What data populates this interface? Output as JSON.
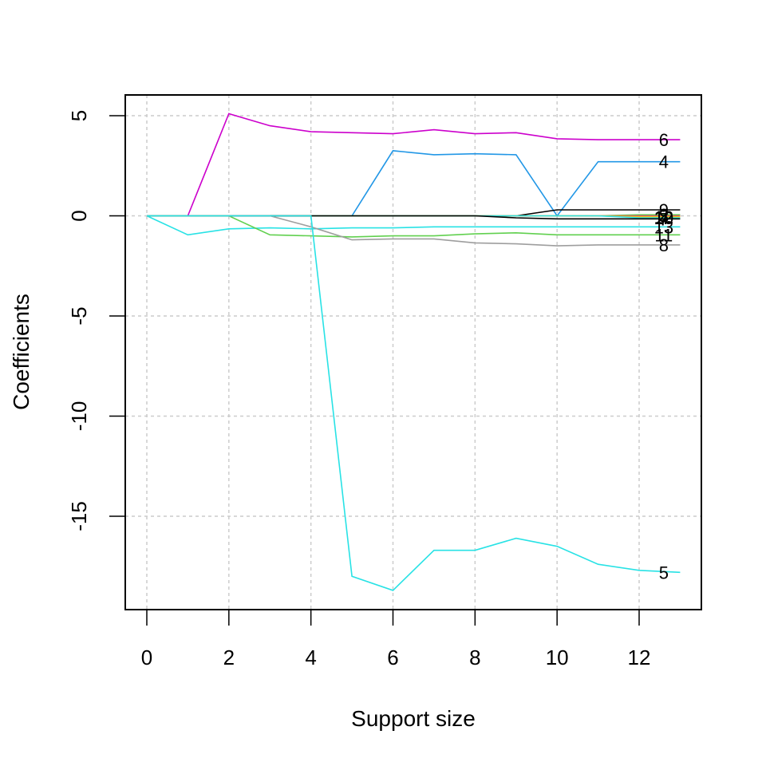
{
  "chart_data": {
    "type": "line",
    "xlabel": "Support size",
    "ylabel": "Coefficients",
    "xlim": [
      0,
      13
    ],
    "ylim": [
      -19.7,
      6
    ],
    "xticks": [
      0,
      2,
      4,
      6,
      8,
      10,
      12
    ],
    "yticks": [
      5,
      0,
      -5,
      -10,
      -15
    ],
    "grid": true,
    "x": [
      0,
      1,
      2,
      3,
      4,
      5,
      6,
      7,
      8,
      9,
      10,
      11,
      12,
      13
    ],
    "series": [
      {
        "name": "6",
        "color": "#cc00cc",
        "values": [
          0,
          0,
          5.1,
          4.5,
          4.2,
          4.15,
          4.1,
          4.3,
          4.1,
          4.15,
          3.85,
          3.8,
          3.8,
          3.8
        ]
      },
      {
        "name": "4",
        "color": "#2297e6",
        "values": [
          0,
          0,
          0,
          0,
          0,
          0,
          3.25,
          3.05,
          3.1,
          3.05,
          0,
          2.7,
          2.7,
          2.7
        ]
      },
      {
        "name": "9",
        "color": "#000000",
        "values": [
          0,
          0,
          0,
          0,
          0,
          0,
          0,
          0,
          0,
          0,
          0.3,
          0.3,
          0.3,
          0.3
        ]
      },
      {
        "name": "2",
        "color": "#61d04f",
        "values": [
          0,
          0,
          0,
          0,
          0,
          0,
          0,
          0,
          0,
          0,
          0,
          0,
          0.05,
          0.05
        ]
      },
      {
        "name": "3",
        "color": "#df536b",
        "values": [
          0,
          0,
          0,
          0,
          0,
          0,
          0,
          0,
          0,
          0,
          0,
          0,
          0,
          0
        ]
      },
      {
        "name": "12",
        "color": "#f5c710",
        "values": [
          0,
          0,
          0,
          0,
          0,
          0,
          0,
          0,
          0,
          0,
          0,
          0,
          -0.05,
          -0.05
        ]
      },
      {
        "name": "10",
        "color": "#28e2e5",
        "values": [
          0,
          0,
          0,
          0,
          0,
          0,
          0,
          0,
          0,
          0,
          0,
          0,
          -0.1,
          -0.1
        ]
      },
      {
        "name": "7",
        "color": "#000000",
        "values": [
          0,
          0,
          0,
          0,
          0,
          0,
          0,
          0,
          0,
          -0.1,
          -0.15,
          -0.15,
          -0.15,
          -0.15
        ]
      },
      {
        "name": "13",
        "color": "#28e2e5",
        "values": [
          0,
          -0.95,
          -0.65,
          -0.6,
          -0.65,
          -0.6,
          -0.6,
          -0.55,
          -0.55,
          -0.55,
          -0.55,
          -0.55,
          -0.55,
          -0.55
        ]
      },
      {
        "name": "11",
        "color": "#61d04f",
        "values": [
          0,
          0,
          0,
          -0.95,
          -1.0,
          -1.05,
          -1.0,
          -1.0,
          -0.9,
          -0.85,
          -0.95,
          -0.95,
          -0.95,
          -0.95
        ]
      },
      {
        "name": "8",
        "color": "#9e9e9e",
        "values": [
          0,
          0,
          0,
          0,
          -0.55,
          -1.2,
          -1.15,
          -1.15,
          -1.35,
          -1.4,
          -1.5,
          -1.45,
          -1.45,
          -1.45
        ]
      },
      {
        "name": "5",
        "color": "#28e2e5",
        "values": [
          0,
          0,
          0,
          0,
          0,
          -18.0,
          -18.7,
          -16.7,
          -16.7,
          -16.1,
          -16.5,
          -17.4,
          -17.7,
          -17.8
        ]
      }
    ]
  }
}
